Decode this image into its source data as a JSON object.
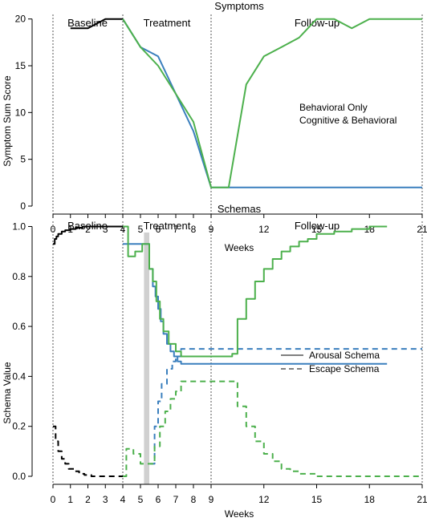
{
  "colors": {
    "baseline": "#000000",
    "behavioral": "#3a7fbd",
    "cognitive": "#4cb04c",
    "shade": "#d0d0d0",
    "divider": "#555555"
  },
  "chart_data": [
    {
      "type": "line",
      "title": "Symptoms",
      "xlabel": "Weeks",
      "ylabel": "Symptom Sum Score",
      "xticks": [
        0,
        1,
        2,
        3,
        4,
        5,
        6,
        7,
        8,
        9,
        12,
        15,
        18,
        21
      ],
      "yticks": [
        0,
        5,
        10,
        15,
        20
      ],
      "xlim": [
        0,
        21
      ],
      "ylim": [
        0,
        21
      ],
      "phase_labels": [
        "Baseline",
        "Treatment",
        "Follow-up"
      ],
      "phase_boundaries": [
        0,
        4,
        9,
        21
      ],
      "legend": [
        "Behavioral Only",
        "Cognitive & Behavioral"
      ],
      "legend_position": "right",
      "series": [
        {
          "key": "baseline",
          "x": [
            1,
            2,
            3,
            4
          ],
          "y": [
            19,
            19,
            20,
            20
          ]
        },
        {
          "key": "behavioral",
          "name": "Behavioral Only",
          "x": [
            4,
            5,
            6,
            7,
            8,
            9,
            10,
            11,
            12,
            13,
            14,
            15,
            16,
            17,
            18,
            19,
            20,
            21
          ],
          "y": [
            20,
            17,
            16,
            12,
            8,
            2,
            2,
            2,
            2,
            2,
            2,
            2,
            2,
            2,
            2,
            2,
            2,
            2
          ]
        },
        {
          "key": "cognitive",
          "name": "Cognitive & Behavioral",
          "x": [
            4,
            5,
            6,
            7,
            8,
            9,
            10,
            11,
            12,
            13,
            14,
            15,
            16,
            17,
            18,
            19,
            20,
            21
          ],
          "y": [
            20,
            17,
            15,
            12,
            9,
            2,
            2,
            13,
            16,
            17,
            18,
            20,
            20,
            19,
            20,
            20,
            20,
            20
          ]
        }
      ]
    },
    {
      "type": "line",
      "title": "Schemas",
      "xlabel": "Weeks",
      "ylabel": "Schema Value",
      "xticks": [
        0,
        1,
        2,
        3,
        4,
        5,
        6,
        7,
        8,
        9,
        12,
        15,
        18,
        21
      ],
      "yticks": [
        0.0,
        0.2,
        0.4,
        0.6,
        0.8,
        1.0
      ],
      "ytick_labels": [
        "0.0",
        "0.2",
        "0.4",
        "0.6",
        "0.8",
        "1.0"
      ],
      "xlim": [
        0,
        21
      ],
      "ylim": [
        0,
        1.04
      ],
      "phase_labels": [
        "Baseline",
        "Treatment",
        "Follow-up"
      ],
      "phase_boundaries": [
        0,
        4,
        9,
        21
      ],
      "shaded_band": [
        5.2,
        5.5
      ],
      "legend": [
        "Arousal Schema",
        "Escape Schema"
      ],
      "legend_position": "right",
      "series": [
        {
          "key": "baseline",
          "style": "solid",
          "x": [
            0,
            0.1,
            0.2,
            0.3,
            0.5,
            0.7,
            1,
            1.3,
            1.7,
            2,
            3,
            4
          ],
          "y": [
            0.93,
            0.95,
            0.96,
            0.97,
            0.98,
            0.985,
            0.99,
            0.995,
            1.0,
            1.0,
            1.0,
            1.0
          ]
        },
        {
          "key": "baseline",
          "style": "dashed",
          "x": [
            0,
            0.15,
            0.3,
            0.5,
            0.7,
            0.9,
            1.2,
            1.5,
            1.8,
            2.2,
            3,
            4
          ],
          "y": [
            0.2,
            0.14,
            0.1,
            0.07,
            0.05,
            0.03,
            0.02,
            0.01,
            0.005,
            0.0,
            0.0,
            0.0
          ]
        },
        {
          "key": "behavioral",
          "style": "solid",
          "x": [
            4,
            4.2,
            4.6,
            5.0,
            5.3,
            5.5,
            5.7,
            5.85,
            6.0,
            6.15,
            6.3,
            6.5,
            6.7,
            6.9,
            7.1,
            7.3,
            19
          ],
          "y": [
            0.93,
            0.93,
            0.93,
            0.93,
            0.93,
            0.83,
            0.76,
            0.72,
            0.67,
            0.62,
            0.57,
            0.53,
            0.5,
            0.48,
            0.46,
            0.45,
            0.45
          ]
        },
        {
          "key": "behavioral",
          "style": "dashed",
          "x": [
            5.55,
            5.8,
            6.0,
            6.2,
            6.5,
            6.8,
            7.0,
            7.3,
            21
          ],
          "y": [
            0.05,
            0.2,
            0.3,
            0.37,
            0.43,
            0.46,
            0.48,
            0.51,
            0.51
          ]
        },
        {
          "key": "cognitive",
          "style": "solid",
          "x": [
            4,
            4.3,
            4.7,
            5.1,
            5.5,
            5.7,
            5.9,
            6.1,
            6.3,
            6.6,
            7.0,
            7.3,
            9,
            10.2,
            10.5,
            11,
            11.5,
            12,
            12.5,
            13,
            13.5,
            14,
            14.5,
            15,
            16,
            17,
            18,
            19
          ],
          "y": [
            1.0,
            0.88,
            0.9,
            0.93,
            0.83,
            0.78,
            0.7,
            0.63,
            0.58,
            0.53,
            0.5,
            0.48,
            0.48,
            0.49,
            0.63,
            0.71,
            0.78,
            0.83,
            0.87,
            0.9,
            0.92,
            0.94,
            0.95,
            0.97,
            0.98,
            0.99,
            1.0,
            1.0
          ]
        },
        {
          "key": "cognitive",
          "style": "dashed",
          "x": [
            4,
            4.2,
            4.6,
            5.0,
            5.6,
            5.8,
            6.1,
            6.4,
            6.7,
            7.0,
            7.3,
            9,
            10.2,
            10.5,
            11,
            11.5,
            12,
            12.5,
            13,
            13.5,
            14,
            15,
            21
          ],
          "y": [
            0.0,
            0.11,
            0.09,
            0.05,
            0.05,
            0.12,
            0.2,
            0.26,
            0.31,
            0.34,
            0.38,
            0.38,
            0.38,
            0.28,
            0.2,
            0.14,
            0.09,
            0.06,
            0.03,
            0.02,
            0.01,
            0.0,
            0.0
          ]
        }
      ]
    }
  ]
}
